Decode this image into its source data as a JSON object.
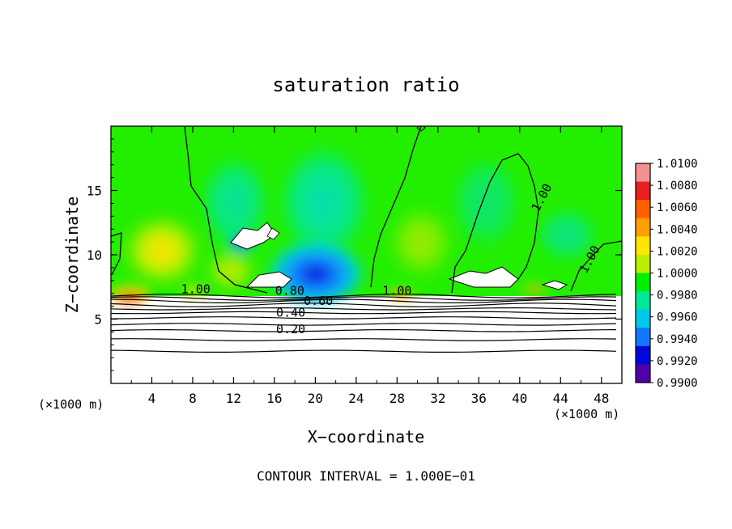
{
  "chart_data": {
    "type": "contour",
    "title": "saturation ratio",
    "xlabel": "X−coordinate",
    "ylabel": "Z−coordinate",
    "x_unit_left": "(×1000 m)",
    "x_unit_right": "(×1000 m)",
    "xlim": [
      0,
      50
    ],
    "ylim": [
      0,
      20
    ],
    "xticks": [
      4,
      8,
      12,
      16,
      20,
      24,
      28,
      32,
      36,
      40,
      44,
      48
    ],
    "yticks": [
      5,
      10,
      15
    ],
    "contour_interval_text": "CONTOUR INTERVAL = 1.000E−01",
    "colorbar": {
      "labels": [
        "1.0100",
        "1.0080",
        "1.0060",
        "1.0040",
        "1.0020",
        "1.0000",
        "0.9980",
        "0.9960",
        "0.9940",
        "0.9920",
        "0.9900"
      ],
      "colors": [
        "#f59090",
        "#e82020",
        "#ff6000",
        "#ffa000",
        "#ffe600",
        "#b8f000",
        "#00ee00",
        "#00e89a",
        "#00c8e8",
        "#1478ff",
        "#0008d8",
        "#5000a8"
      ]
    },
    "contour_labels": [
      {
        "text": "1.00",
        "x": 8.3,
        "y": 7.0
      },
      {
        "text": "0.80",
        "x": 17.5,
        "y": 6.9
      },
      {
        "text": "0.60",
        "x": 20.3,
        "y": 6.1
      },
      {
        "text": "0.40",
        "x": 17.6,
        "y": 5.2
      },
      {
        "text": "0.20",
        "x": 17.6,
        "y": 3.9
      },
      {
        "text": "1.00",
        "x": 28.0,
        "y": 6.9
      },
      {
        "text": "1.00",
        "x": 42.5,
        "y": 14.3
      },
      {
        "text": "1.00",
        "x": 47.2,
        "y": 9.5
      }
    ],
    "lower_contours_z": [
      6.8,
      6.6,
      6.4,
      6.1,
      5.8,
      5.5,
      5.1,
      4.6,
      4.1,
      3.4,
      2.5
    ]
  }
}
